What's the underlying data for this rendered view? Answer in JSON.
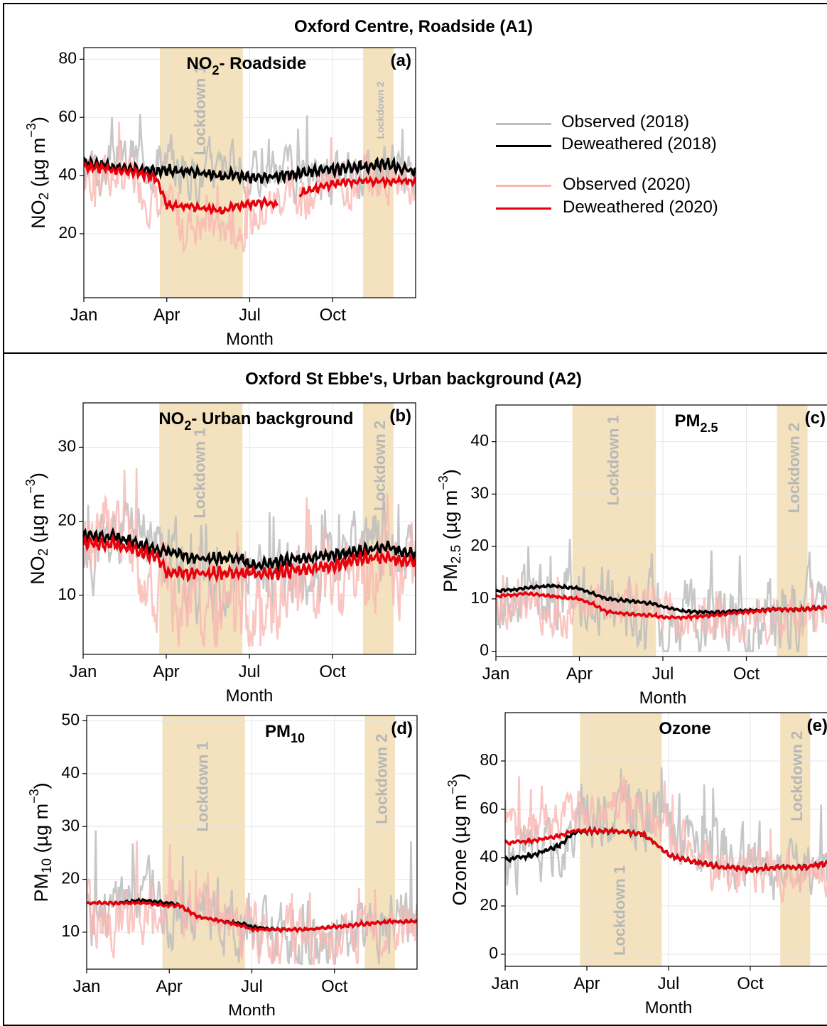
{
  "sections": [
    {
      "title": "Oxford Centre, Roadside (A1)"
    },
    {
      "title": "Oxford St Ebbe's, Urban background (A2)"
    }
  ],
  "legend": [
    {
      "label": "Observed (2018)",
      "color": "#bdbdbd"
    },
    {
      "label": "Deweathered (2018)",
      "color": "#000000"
    },
    {
      "label": "Observed (2020)",
      "color": "#f9b8b3"
    },
    {
      "label": "Deweathered (2020)",
      "color": "#e8000b"
    }
  ],
  "colors": {
    "observed_2018": "#bdbdbd",
    "deweathered_2018": "#000000",
    "observed_2020": "#f9b8b3",
    "deweathered_2020": "#e8000b",
    "lockdown": "#f3e2bd",
    "lockdown_text": "#b7b7b7",
    "overlap": "#f6a88a"
  },
  "lockdowns": [
    {
      "label": "Lockdown 1",
      "start_month": 2.75,
      "end_month": 5.75
    },
    {
      "label": "Lockdown 2",
      "start_month": 10.1,
      "end_month": 11.2
    }
  ],
  "x_axis": {
    "label": "Month",
    "ticks": [
      {
        "month": 0,
        "label": "Jan"
      },
      {
        "month": 3,
        "label": "Apr"
      },
      {
        "month": 6,
        "label": "Jul"
      },
      {
        "month": 9,
        "label": "Oct"
      }
    ],
    "range": [
      0,
      12
    ]
  },
  "chart_data": [
    {
      "id": "a",
      "panel_label": "(a)",
      "type": "line",
      "title_main": "NO",
      "title_sub": "2",
      "title_rest": "- Roadside",
      "ylabel_main": "NO",
      "ylabel_sub": "2",
      "ylabel_rest": " (µg m",
      "ylabel_sup": "−3",
      "ylabel_end": ")",
      "ylim": [
        -2,
        84
      ],
      "yticks": [
        20,
        40,
        60,
        80
      ],
      "lockdown_label_orient": "vertical",
      "series": [
        {
          "key": "observed_2018",
          "base": [
            38,
            44,
            47,
            44,
            40,
            42,
            40,
            43,
            40,
            38,
            42,
            44,
            40
          ],
          "amp": 12,
          "seed": 3
        },
        {
          "key": "observed_2020",
          "base": [
            38,
            40,
            38,
            26,
            24,
            22,
            24,
            32,
            34,
            36,
            38,
            40,
            34
          ],
          "amp": 12,
          "seed": 7
        },
        {
          "key": "deweathered_2018",
          "x": [
            0,
            1,
            2,
            2.7,
            3,
            4,
            5,
            5.75,
            6,
            7,
            8,
            9,
            10,
            11,
            12
          ],
          "y": [
            44,
            43,
            42,
            41,
            42,
            41,
            40,
            40,
            39,
            40,
            41,
            42,
            43,
            44,
            41
          ],
          "wiggle": 2
        },
        {
          "key": "deweathered_2020",
          "x": [
            0,
            1,
            2,
            2.6,
            3,
            4,
            5,
            5.75,
            6,
            6.5,
            7,
            7.1,
            7.8,
            8.5,
            9,
            10,
            11,
            12
          ],
          "y": [
            43,
            42,
            41,
            39,
            30,
            29,
            28,
            30,
            30,
            31,
            30,
            null,
            34,
            36,
            37,
            38,
            38,
            38
          ],
          "wiggle": 1.5
        }
      ]
    },
    {
      "id": "b",
      "panel_label": "(b)",
      "type": "line",
      "title_main": "NO",
      "title_sub": "2",
      "title_rest": "- Urban background",
      "ylabel_main": "NO",
      "ylabel_sub": "2",
      "ylabel_rest": " (µg m",
      "ylabel_sup": "−3",
      "ylabel_end": ")",
      "ylim": [
        2,
        36
      ],
      "yticks": [
        10,
        20,
        30
      ],
      "series": [
        {
          "key": "observed_2018",
          "base": [
            15,
            17,
            18,
            16,
            12,
            12,
            13,
            12,
            13,
            14,
            16,
            18,
            15
          ],
          "amp": 7,
          "seed": 11
        },
        {
          "key": "observed_2020",
          "base": [
            16,
            20,
            14,
            10,
            8,
            8,
            9,
            8,
            9,
            12,
            13,
            14,
            11
          ],
          "amp": 8,
          "seed": 13
        },
        {
          "key": "deweathered_2018",
          "x": [
            0,
            1,
            2,
            2.75,
            3,
            4,
            5,
            5.75,
            6,
            7,
            8,
            9,
            10,
            11,
            12
          ],
          "y": [
            18,
            18,
            17,
            16,
            16,
            15,
            15,
            15,
            14,
            14.5,
            15,
            15.5,
            16,
            16.5,
            15.5
          ],
          "wiggle": 0.8
        },
        {
          "key": "deweathered_2020",
          "x": [
            0,
            1,
            2,
            2.75,
            3,
            4,
            5,
            5.75,
            6,
            7,
            8,
            9,
            10,
            11,
            12
          ],
          "y": [
            17,
            17,
            16,
            15,
            13,
            13,
            13,
            13,
            13,
            13,
            13.5,
            14,
            15,
            15,
            14.5
          ],
          "wiggle": 0.9
        }
      ]
    },
    {
      "id": "c",
      "panel_label": "(c)",
      "type": "line",
      "title_main": "PM",
      "title_sub": "2.5",
      "title_rest": "",
      "ylabel_main": "PM",
      "ylabel_sub": "2.5",
      "ylabel_rest": " (µg m",
      "ylabel_sup": "−3",
      "ylabel_end": ")",
      "ylim": [
        -1,
        47
      ],
      "yticks": [
        0,
        10,
        20,
        30,
        40
      ],
      "series": [
        {
          "key": "observed_2018",
          "base": [
            8,
            10,
            14,
            10,
            9,
            8,
            7,
            6,
            5,
            6,
            7,
            8,
            8
          ],
          "amp": 10,
          "seed": 17
        },
        {
          "key": "observed_2020",
          "base": [
            8,
            9,
            7,
            8,
            9,
            10,
            8,
            6,
            5,
            5,
            6,
            7,
            7
          ],
          "amp": 6,
          "seed": 19
        },
        {
          "key": "deweathered_2018",
          "x": [
            0,
            1,
            2,
            3,
            4,
            5,
            5.75,
            6,
            7,
            8,
            9,
            10,
            11,
            12
          ],
          "y": [
            11.5,
            12,
            12.5,
            12,
            10,
            9.5,
            9,
            8.5,
            7.5,
            7.5,
            7.8,
            8,
            8,
            8.5
          ],
          "wiggle": 0.3
        },
        {
          "key": "deweathered_2020",
          "x": [
            0,
            1,
            2,
            3,
            3.5,
            4,
            5,
            5.75,
            6,
            7,
            8,
            9,
            10,
            11,
            12
          ],
          "y": [
            10.5,
            11,
            10.5,
            10,
            9,
            7.5,
            7,
            6.8,
            6.5,
            6.5,
            7,
            7.5,
            8,
            8,
            8.5
          ],
          "wiggle": 0.3
        }
      ]
    },
    {
      "id": "d",
      "panel_label": "(d)",
      "type": "line",
      "title_main": "PM",
      "title_sub": "10",
      "title_rest": "",
      "ylabel_main": "PM",
      "ylabel_sub": "10",
      "ylabel_rest": " (µg m",
      "ylabel_sup": "−3",
      "ylabel_end": ")",
      "ylim": [
        3,
        51
      ],
      "yticks": [
        10,
        20,
        30,
        40,
        50
      ],
      "series": [
        {
          "key": "observed_2018",
          "base": [
            13,
            14,
            18,
            14,
            13,
            12,
            11,
            9,
            8,
            9,
            10,
            12,
            12
          ],
          "amp": 9,
          "seed": 23
        },
        {
          "key": "observed_2020",
          "base": [
            13,
            12,
            11,
            14,
            16,
            12,
            10,
            9,
            8,
            8,
            9,
            11,
            10
          ],
          "amp": 8,
          "seed": 29
        },
        {
          "key": "deweathered_2018",
          "x": [
            0,
            1,
            2,
            3,
            3.4,
            4,
            5,
            5.75,
            6,
            7,
            8,
            9,
            10,
            11,
            12
          ],
          "y": [
            15.5,
            15.5,
            16,
            15.5,
            15,
            13,
            12,
            11.5,
            11,
            10.5,
            10.5,
            11,
            11.5,
            12,
            12
          ],
          "wiggle": 0.3
        },
        {
          "key": "deweathered_2020",
          "x": [
            0,
            1,
            2,
            3,
            3.4,
            4,
            5,
            5.75,
            6,
            7,
            8,
            9,
            10,
            11,
            12
          ],
          "y": [
            15.5,
            15.5,
            15.5,
            15,
            15,
            13,
            12,
            11,
            10.5,
            10.5,
            10.5,
            11,
            11.5,
            12,
            12
          ],
          "wiggle": 0.3
        }
      ]
    },
    {
      "id": "e",
      "panel_label": "(e)",
      "type": "line",
      "title_main": "Ozone",
      "title_sub": "",
      "title_rest": "",
      "ylabel_main": "Ozone",
      "ylabel_sub": "",
      "ylabel_rest": " (µg m",
      "ylabel_sup": "−3",
      "ylabel_end": ")",
      "ylim": [
        -5,
        100
      ],
      "yticks": [
        0,
        20,
        40,
        60,
        80
      ],
      "series": [
        {
          "key": "observed_2018",
          "base": [
            38,
            40,
            45,
            55,
            60,
            58,
            55,
            45,
            38,
            36,
            34,
            35,
            36
          ],
          "amp": 18,
          "seed": 31
        },
        {
          "key": "observed_2020",
          "base": [
            48,
            55,
            58,
            60,
            62,
            60,
            50,
            40,
            36,
            35,
            34,
            33,
            35
          ],
          "amp": 14,
          "seed": 37
        },
        {
          "key": "deweathered_2018",
          "x": [
            0,
            1,
            2,
            2.5,
            3,
            4,
            5,
            5.5,
            6,
            7,
            8,
            9,
            10,
            11,
            12
          ],
          "y": [
            39,
            41,
            45,
            50,
            51,
            51,
            50,
            46,
            41,
            38,
            36,
            35,
            36,
            36,
            38
          ],
          "wiggle": 1
        },
        {
          "key": "deweathered_2020",
          "x": [
            0,
            1,
            2,
            2.5,
            3,
            4,
            5,
            5.5,
            6,
            7,
            8,
            9,
            10,
            11,
            12
          ],
          "y": [
            46,
            47,
            49,
            51,
            51,
            51,
            50,
            46,
            41,
            38,
            36,
            35,
            36,
            36,
            38
          ],
          "wiggle": 0.8
        }
      ]
    }
  ]
}
